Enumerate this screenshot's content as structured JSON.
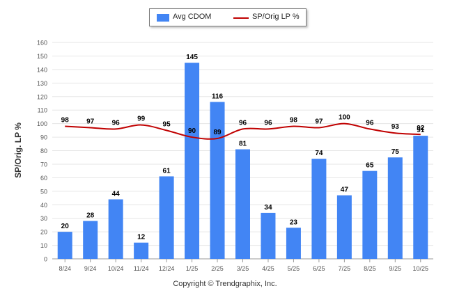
{
  "chart_data": {
    "type": "bar",
    "title": "",
    "xlabel": "",
    "ylabel": "SP/Orig. LP %",
    "ylim": [
      0,
      160
    ],
    "yticks": [
      0,
      10,
      20,
      30,
      40,
      50,
      60,
      70,
      80,
      90,
      100,
      110,
      120,
      130,
      140,
      150,
      160
    ],
    "categories": [
      "8/24",
      "9/24",
      "10/24",
      "11/24",
      "12/24",
      "1/25",
      "2/25",
      "3/25",
      "4/25",
      "5/25",
      "6/25",
      "7/25",
      "8/25",
      "9/25",
      "10/25"
    ],
    "series": [
      {
        "name": "Avg CDOM",
        "kind": "bar",
        "color": "#4285f4",
        "values": [
          20,
          28,
          44,
          12,
          61,
          145,
          116,
          81,
          34,
          23,
          74,
          47,
          65,
          75,
          91
        ]
      },
      {
        "name": "SP/Orig LP %",
        "kind": "line",
        "color": "#c00000",
        "values": [
          98,
          97,
          96,
          99,
          95,
          90,
          89,
          96,
          96,
          98,
          97,
          100,
          96,
          93,
          92
        ]
      }
    ],
    "legend": "top-center"
  },
  "legend": {
    "bar_label": "Avg CDOM",
    "line_label": "SP/Orig LP %"
  },
  "copyright": "Copyright © Trendgraphix, Inc."
}
